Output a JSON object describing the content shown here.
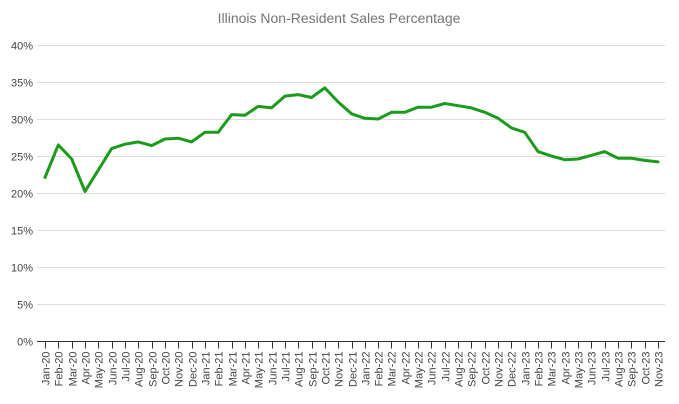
{
  "chart_data": {
    "type": "line",
    "title": "Illinois Non-Resident Sales Percentage",
    "xlabel": "",
    "ylabel": "",
    "ylim": [
      0,
      40
    ],
    "yticks": [
      0,
      5,
      10,
      15,
      20,
      25,
      30,
      35,
      40
    ],
    "ytick_labels": [
      "0%",
      "5%",
      "10%",
      "15%",
      "20%",
      "25%",
      "30%",
      "35%",
      "40%"
    ],
    "grid": true,
    "legend": "none",
    "x": [
      "Jan-20",
      "Feb-20",
      "Mar-20",
      "Apr-20",
      "May-20",
      "Jun-20",
      "Jul-20",
      "Aug-20",
      "Sep-20",
      "Oct-20",
      "Nov-20",
      "Dec-20",
      "Jan-21",
      "Feb-21",
      "Mar-21",
      "Apr-21",
      "May-21",
      "Jun-21",
      "Jul-21",
      "Aug-21",
      "Sep-21",
      "Oct-21",
      "Nov-21",
      "Dec-21",
      "Jan-22",
      "Feb-22",
      "Mar-22",
      "Apr-22",
      "May-22",
      "Jun-22",
      "Jul-22",
      "Aug-22",
      "Sep-22",
      "Oct-22",
      "Nov-22",
      "Dec-22",
      "Jan-23",
      "Feb-23",
      "Mar-23",
      "Apr-23",
      "May-23",
      "Jun-23",
      "Jul-23",
      "Aug-23",
      "Sep-23",
      "Oct-23",
      "Nov-23"
    ],
    "series": [
      {
        "name": "Non-Resident Sales Percentage",
        "color": "#1c9a1c",
        "values": [
          22.1,
          26.5,
          24.6,
          20.2,
          23.1,
          26.0,
          26.6,
          26.9,
          26.4,
          27.3,
          27.4,
          26.9,
          28.2,
          28.2,
          30.6,
          30.5,
          31.7,
          31.5,
          33.1,
          33.3,
          32.9,
          34.2,
          32.3,
          30.7,
          30.1,
          30.0,
          30.9,
          30.9,
          31.6,
          31.6,
          32.1,
          31.8,
          31.5,
          30.9,
          30.1,
          28.8,
          28.2,
          25.6,
          25.0,
          24.5,
          24.6,
          25.1,
          25.6,
          24.7,
          24.7,
          24.4,
          24.2
        ]
      }
    ]
  }
}
